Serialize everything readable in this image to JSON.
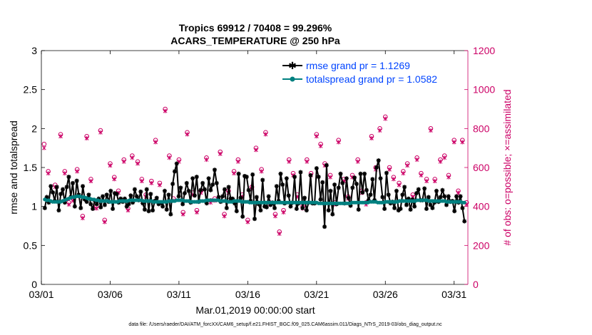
{
  "chart_data": {
    "type": "line",
    "title_line1": "Tropics 69912 / 70408 = 99.296%",
    "title_line2": "ACARS_TEMPERATURE @ 250 hPa",
    "xlabel": "Mar.01,2019 00:00:00 start",
    "ylabel_left": "rmse and totalspread",
    "ylabel_right": "# of obs: o=possible; ×=assimilated",
    "xlim": [
      0,
      31
    ],
    "ylim_left": [
      0,
      3
    ],
    "ylim_right": [
      0,
      1200
    ],
    "x_tick_values": [
      0,
      5,
      10,
      15,
      20,
      25,
      30
    ],
    "x_tick_labels": [
      "03/01",
      "03/06",
      "03/11",
      "03/16",
      "03/21",
      "03/26",
      "03/31"
    ],
    "y_left_ticks": [
      "0",
      "0.5",
      "1",
      "1.5",
      "2",
      "2.5",
      "3"
    ],
    "y_right_ticks": [
      "0",
      "200",
      "400",
      "600",
      "800",
      "1000",
      "1200"
    ],
    "legend": [
      {
        "label": "rmse grand pr = 1.1269",
        "color": "#000000"
      },
      {
        "label": "totalspread grand pr = 1.0582",
        "color": "#008080"
      }
    ],
    "colors": {
      "rmse": "#000000",
      "spread": "#008080",
      "obs": "#cc0066",
      "legend_text": "#0044ff"
    },
    "footnote": "data file: /Users/raeder/DAI/ATM_forcXX/CAM6_setup/f.e21.FHIST_BGC.f09_025.CAM6assim.011/Diags_NTrS_2019-03/obs_diag_output.nc",
    "series": [
      {
        "name": "rmse",
        "values": [
          0.98,
          1.12,
          1.05,
          1.26,
          1.18,
          1.07,
          1.25,
          0.95,
          1.16,
          1.22,
          1.05,
          1.25,
          1.38,
          1.12,
          1.3,
          1.0,
          1.33,
          1.15,
          0.98,
          1.26,
          1.09,
          1.06,
          1.15,
          1.03,
          0.97,
          1.08,
          1.03,
          1.1,
          0.99,
          1.13,
          1.02,
          1.15,
          1.06,
          1.2,
          0.97,
          1.17,
          1.16,
          1.05,
          1.1,
          1.06,
          1.1,
          1.0,
          1.03,
          1.14,
          1.05,
          1.22,
          1.13,
          1.08,
          1.19,
          1.04,
          0.96,
          1.22,
          0.94,
          1.16,
          0.95,
          1.07,
          1.11,
          1.03,
          1.05,
          1.0,
          1.2,
          0.96,
          1.15,
          0.9,
          1.29,
          1.45,
          1.55,
          1.13,
          1.24,
          1.03,
          1.17,
          1.3,
          1.2,
          1.05,
          1.36,
          1.14,
          1.38,
          1.06,
          1.21,
          1.3,
          1.22,
          1.04,
          1.36,
          1.21,
          1.28,
          1.47,
          1.3,
          1.12,
          1.06,
          1.13,
          1.22,
          0.98,
          1.25,
          1.1,
          1.1,
          1.04,
          0.94,
          1.42,
          1.11,
          0.87,
          1.39,
          1.38,
          1.21,
          1.07,
          1.41,
          0.84,
          1.12,
          1.03,
          0.95,
          1.34,
          1.0,
          0.99,
          1.13,
          1.02,
          1.05,
          0.98,
          1.26,
          1.07,
          1.42,
          1.28,
          1.04,
          1.36,
          1.14,
          1.0,
          1.05,
          1.38,
          0.97,
          1.04,
          1.44,
          0.98,
          1.11,
          0.95,
          1.05,
          1.4,
          1.04,
          1.04,
          1.49,
          1.38,
          1.09,
          1.31,
          0.74,
          1.53,
          0.95,
          1.2,
          0.9,
          1.28,
          1.03,
          1.24,
          1.42,
          1.3,
          1.04,
          1.36,
          1.11,
          1.01,
          1.24,
          1.37,
          1.29,
          0.96,
          1.42,
          1.18,
          1.42,
          1.21,
          1.08,
          1.15,
          1.35,
          1.08,
          1.5,
          1.59,
          1.36,
          1.12,
          0.97,
          1.43,
          1.15,
          1.04,
          1.06,
          0.98,
          1.2,
          0.95,
          0.97,
          1.15,
          1.25,
          1.02,
          1.1,
          0.96,
          1.09,
          1.0,
          1.17,
          1.22,
          1.08,
          1.08,
          1.23,
          0.97,
          1.12,
          1.02,
          0.98,
          1.05,
          1.2,
          1.06,
          1.12,
          1.21,
          1.13,
          1.02,
          1.13,
          1.06,
          1.07,
          0.94,
          1.13,
          1.05,
          1.13,
          0.98,
          0.81
        ]
      },
      {
        "name": "totalspread",
        "values": [
          1.09,
          1.08,
          1.08,
          1.07,
          1.06,
          1.06,
          1.06,
          1.06,
          1.06,
          1.07,
          1.08,
          1.09,
          1.1,
          1.11,
          1.12,
          1.12,
          1.13,
          1.13,
          1.13,
          1.12,
          1.12,
          1.11,
          1.1,
          1.1,
          1.09,
          1.09,
          1.08,
          1.08,
          1.07,
          1.07,
          1.07,
          1.07,
          1.07,
          1.06,
          1.06,
          1.06,
          1.06,
          1.06,
          1.07,
          1.07,
          1.07,
          1.07,
          1.07,
          1.08,
          1.08,
          1.08,
          1.08,
          1.08,
          1.08,
          1.08,
          1.07,
          1.07,
          1.07,
          1.07,
          1.07,
          1.06,
          1.06,
          1.06,
          1.06,
          1.06,
          1.06,
          1.06,
          1.06,
          1.07,
          1.07,
          1.07,
          1.07,
          1.08,
          1.08,
          1.08,
          1.08,
          1.07,
          1.07,
          1.07,
          1.06,
          1.06,
          1.06,
          1.06,
          1.06,
          1.07,
          1.07,
          1.07,
          1.08,
          1.08,
          1.08,
          1.08,
          1.08,
          1.08,
          1.08,
          1.07,
          1.07,
          1.07,
          1.07,
          1.06,
          1.06,
          1.06,
          1.07,
          1.07,
          1.07,
          1.07,
          1.06,
          1.06,
          1.06,
          1.06,
          1.05,
          1.05,
          1.05,
          1.05,
          1.05,
          1.05,
          1.05,
          1.05,
          1.05,
          1.05,
          1.05,
          1.05,
          1.05,
          1.05,
          1.05,
          1.05,
          1.05,
          1.05,
          1.05,
          1.05,
          1.05,
          1.05,
          1.05,
          1.05,
          1.05,
          1.05,
          1.05,
          1.05,
          1.05,
          1.05,
          1.05,
          1.05,
          1.05,
          1.05,
          1.05,
          1.04,
          1.04,
          1.04,
          1.04,
          1.04,
          1.04,
          1.04,
          1.04,
          1.04,
          1.04,
          1.04,
          1.04,
          1.04,
          1.04,
          1.04,
          1.04,
          1.04,
          1.05,
          1.05,
          1.05,
          1.05,
          1.05,
          1.05,
          1.05,
          1.05,
          1.05,
          1.06,
          1.06,
          1.06,
          1.06,
          1.05,
          1.05,
          1.05,
          1.05,
          1.06,
          1.06,
          1.06,
          1.06,
          1.06,
          1.06,
          1.06,
          1.07,
          1.07,
          1.07,
          1.07,
          1.07,
          1.07,
          1.07,
          1.07,
          1.07,
          1.08,
          1.08,
          1.08,
          1.08,
          1.08,
          1.08,
          1.07,
          1.07,
          1.07,
          1.07,
          1.07,
          1.07,
          1.07,
          1.07,
          1.07,
          1.06,
          1.06,
          1.06,
          1.06,
          1.06,
          1.06,
          1.06,
          1.06,
          1.05,
          1.05
        ]
      },
      {
        "name": "obs_possible",
        "x": [
          0.2,
          0.5,
          1.0,
          1.4,
          1.7,
          2.0,
          2.3,
          2.6,
          3.0,
          3.3,
          3.6,
          4.0,
          4.3,
          4.6,
          5.0,
          5.3,
          5.6,
          6.0,
          6.3,
          6.6,
          7.0,
          7.3,
          7.6,
          8.0,
          8.3,
          8.6,
          9.0,
          9.3,
          9.6,
          10.0,
          10.3,
          10.6,
          11.0,
          11.3,
          11.6,
          12.0,
          12.3,
          12.6,
          13.0,
          13.3,
          13.6,
          14.0,
          14.3,
          14.6,
          15.0,
          15.3,
          15.6,
          16.0,
          16.3,
          16.6,
          17.0,
          17.3,
          17.6,
          18.0,
          18.3,
          18.6,
          19.0,
          19.3,
          19.6,
          20.0,
          20.3,
          20.6,
          21.0,
          21.3,
          21.6,
          22.0,
          22.3,
          22.6,
          23.0,
          23.3,
          23.6,
          24.0,
          24.3,
          24.6,
          25.0,
          25.3,
          25.6,
          26.0,
          26.3,
          26.6,
          27.0,
          27.3,
          27.6,
          28.0,
          28.3,
          28.6,
          29.0,
          29.3,
          29.6,
          30.0,
          30.3,
          30.6,
          30.9
        ],
        "values": [
          720,
          580,
          510,
          770,
          580,
          420,
          440,
          590,
          350,
          760,
          540,
          400,
          790,
          330,
          620,
          550,
          480,
          640,
          390,
          660,
          630,
          540,
          460,
          530,
          740,
          520,
          900,
          660,
          440,
          640,
          370,
          780,
          470,
          380,
          480,
          650,
          430,
          440,
          680,
          360,
          480,
          580,
          640,
          460,
          330,
          500,
          700,
          590,
          780,
          420,
          360,
          270,
          380,
          640,
          570,
          460,
          400,
          640,
          570,
          770,
          720,
          620,
          560,
          420,
          740,
          540,
          450,
          560,
          640,
          480,
          420,
          760,
          600,
          800,
          860,
          600,
          550,
          520,
          580,
          620,
          460,
          650,
          570,
          540,
          800,
          540,
          640,
          660,
          560,
          740,
          480,
          740,
          420
        ],
        "assimilated": [
          700,
          570,
          500,
          760,
          570,
          410,
          430,
          580,
          340,
          750,
          530,
          390,
          780,
          320,
          610,
          540,
          470,
          630,
          380,
          650,
          620,
          530,
          450,
          520,
          730,
          510,
          890,
          650,
          430,
          630,
          360,
          770,
          460,
          370,
          470,
          640,
          420,
          430,
          670,
          350,
          470,
          570,
          630,
          450,
          320,
          490,
          690,
          580,
          770,
          410,
          350,
          260,
          370,
          630,
          560,
          450,
          390,
          630,
          560,
          760,
          710,
          610,
          550,
          410,
          730,
          530,
          440,
          550,
          630,
          470,
          410,
          750,
          590,
          790,
          850,
          590,
          540,
          510,
          570,
          610,
          450,
          640,
          560,
          530,
          790,
          530,
          630,
          650,
          550,
          730,
          470,
          730,
          410
        ]
      }
    ]
  }
}
